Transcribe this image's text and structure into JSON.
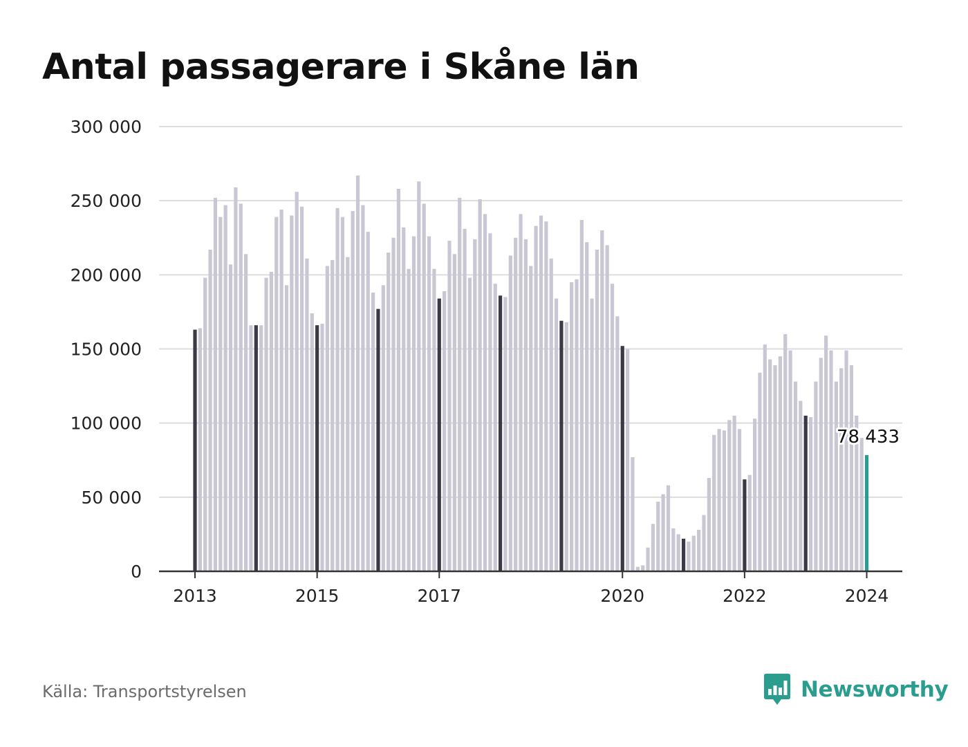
{
  "title": "Antal passagerare i Skåne län",
  "source": "Källa: Transportstyrelsen",
  "brand": {
    "name": "Newsworthy",
    "icon": "bar-chart-speech-bubble-icon",
    "color": "#2a9d8f"
  },
  "colors": {
    "bar": "#c8c7d3",
    "january_bar": "#3b3946",
    "latest_bar": "#2a9d8f",
    "grid": "#dddddd",
    "axis": "#333333"
  },
  "chart_data": {
    "type": "bar",
    "title": "Antal passagerare i Skåne län",
    "xlabel": "",
    "ylabel": "",
    "ylim": [
      0,
      300000
    ],
    "y_ticks": [
      {
        "value": 0,
        "label": "0"
      },
      {
        "value": 50000,
        "label": "50 000"
      },
      {
        "value": 100000,
        "label": "100 000"
      },
      {
        "value": 150000,
        "label": "150 000"
      },
      {
        "value": 200000,
        "label": "200 000"
      },
      {
        "value": 250000,
        "label": "250 000"
      },
      {
        "value": 300000,
        "label": "300 000"
      }
    ],
    "x_ticks": [
      "2013",
      "2015",
      "2017",
      "2020",
      "2022",
      "2024"
    ],
    "grid": true,
    "start": "2013-01",
    "frequency": "monthly",
    "highlight": "January of each year shown darker; latest month highlighted",
    "latest_label": "78 433",
    "years": [
      {
        "year": 2013,
        "values": [
          163000,
          164000,
          198000,
          217000,
          252000,
          239000,
          247000,
          207000,
          259000,
          248000,
          214000,
          166000
        ]
      },
      {
        "year": 2014,
        "values": [
          166000,
          166000,
          198000,
          202000,
          239000,
          244000,
          193000,
          240000,
          256000,
          246000,
          211000,
          174000
        ]
      },
      {
        "year": 2015,
        "values": [
          166000,
          167000,
          206000,
          210000,
          245000,
          239000,
          212000,
          243000,
          267000,
          247000,
          229000,
          188000
        ]
      },
      {
        "year": 2016,
        "values": [
          177000,
          193000,
          215000,
          225000,
          258000,
          232000,
          204000,
          226000,
          263000,
          248000,
          226000,
          204000
        ]
      },
      {
        "year": 2017,
        "values": [
          184000,
          189000,
          223000,
          214000,
          252000,
          231000,
          198000,
          224000,
          251000,
          241000,
          228000,
          194000
        ]
      },
      {
        "year": 2018,
        "values": [
          186000,
          185000,
          213000,
          225000,
          241000,
          224000,
          206000,
          233000,
          240000,
          236000,
          211000,
          184000
        ]
      },
      {
        "year": 2019,
        "values": [
          169000,
          168000,
          195000,
          197000,
          237000,
          222000,
          184000,
          217000,
          230000,
          220000,
          194000,
          172000
        ]
      },
      {
        "year": 2020,
        "values": [
          152000,
          150000,
          77000,
          3000,
          4000,
          16000,
          32000,
          47000,
          52000,
          58000,
          29000,
          25000
        ]
      },
      {
        "year": 2021,
        "values": [
          22000,
          20000,
          24000,
          28000,
          38000,
          63000,
          92000,
          96000,
          95000,
          102000,
          105000,
          96000
        ]
      },
      {
        "year": 2022,
        "values": [
          62000,
          65000,
          103000,
          134000,
          153000,
          143000,
          139000,
          145000,
          160000,
          149000,
          128000,
          115000
        ]
      },
      {
        "year": 2023,
        "values": [
          105000,
          104000,
          128000,
          144000,
          159000,
          149000,
          128000,
          137000,
          149000,
          139000,
          105000,
          90000
        ]
      },
      {
        "year": 2024,
        "values": [
          78433
        ]
      }
    ]
  }
}
